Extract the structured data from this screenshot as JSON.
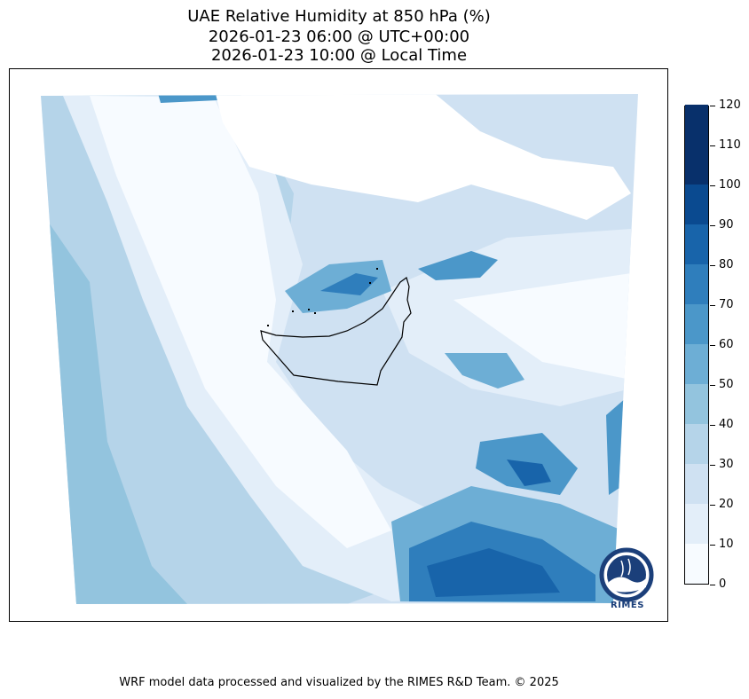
{
  "title": {
    "line1": "UAE Relative Humidity at 850 hPa (%)",
    "line2": "2026-01-23 06:00 @ UTC+00:00",
    "line3": "2026-01-23 10:00 @ Local Time"
  },
  "colorbar": {
    "levels": [
      0,
      10,
      20,
      30,
      40,
      50,
      60,
      70,
      80,
      90,
      100,
      110,
      120
    ],
    "colors": [
      "#f7fbff",
      "#e3eef9",
      "#cfe1f2",
      "#b5d4e9",
      "#93c4de",
      "#6daed5",
      "#4b97c9",
      "#2f7ebc",
      "#1864aa",
      "#0a4a90",
      "#08306b",
      "#08306b"
    ],
    "labels": [
      "0",
      "10",
      "20",
      "30",
      "40",
      "50",
      "60",
      "70",
      "80",
      "90",
      "100",
      "110",
      "120"
    ]
  },
  "footer": "WRF model data processed and visualized by the RIMES R&D Team. © 2025",
  "logo": {
    "text": "RIMES",
    "ring_text": "Regional Integrated Multi-Hazard Early Warning System"
  },
  "colors": {
    "background": "#ffffff",
    "border": "#000000",
    "land_outline": "#000000"
  },
  "map_icons": [
    "uae-boundary-outline",
    "rimes-logo-icon"
  ]
}
